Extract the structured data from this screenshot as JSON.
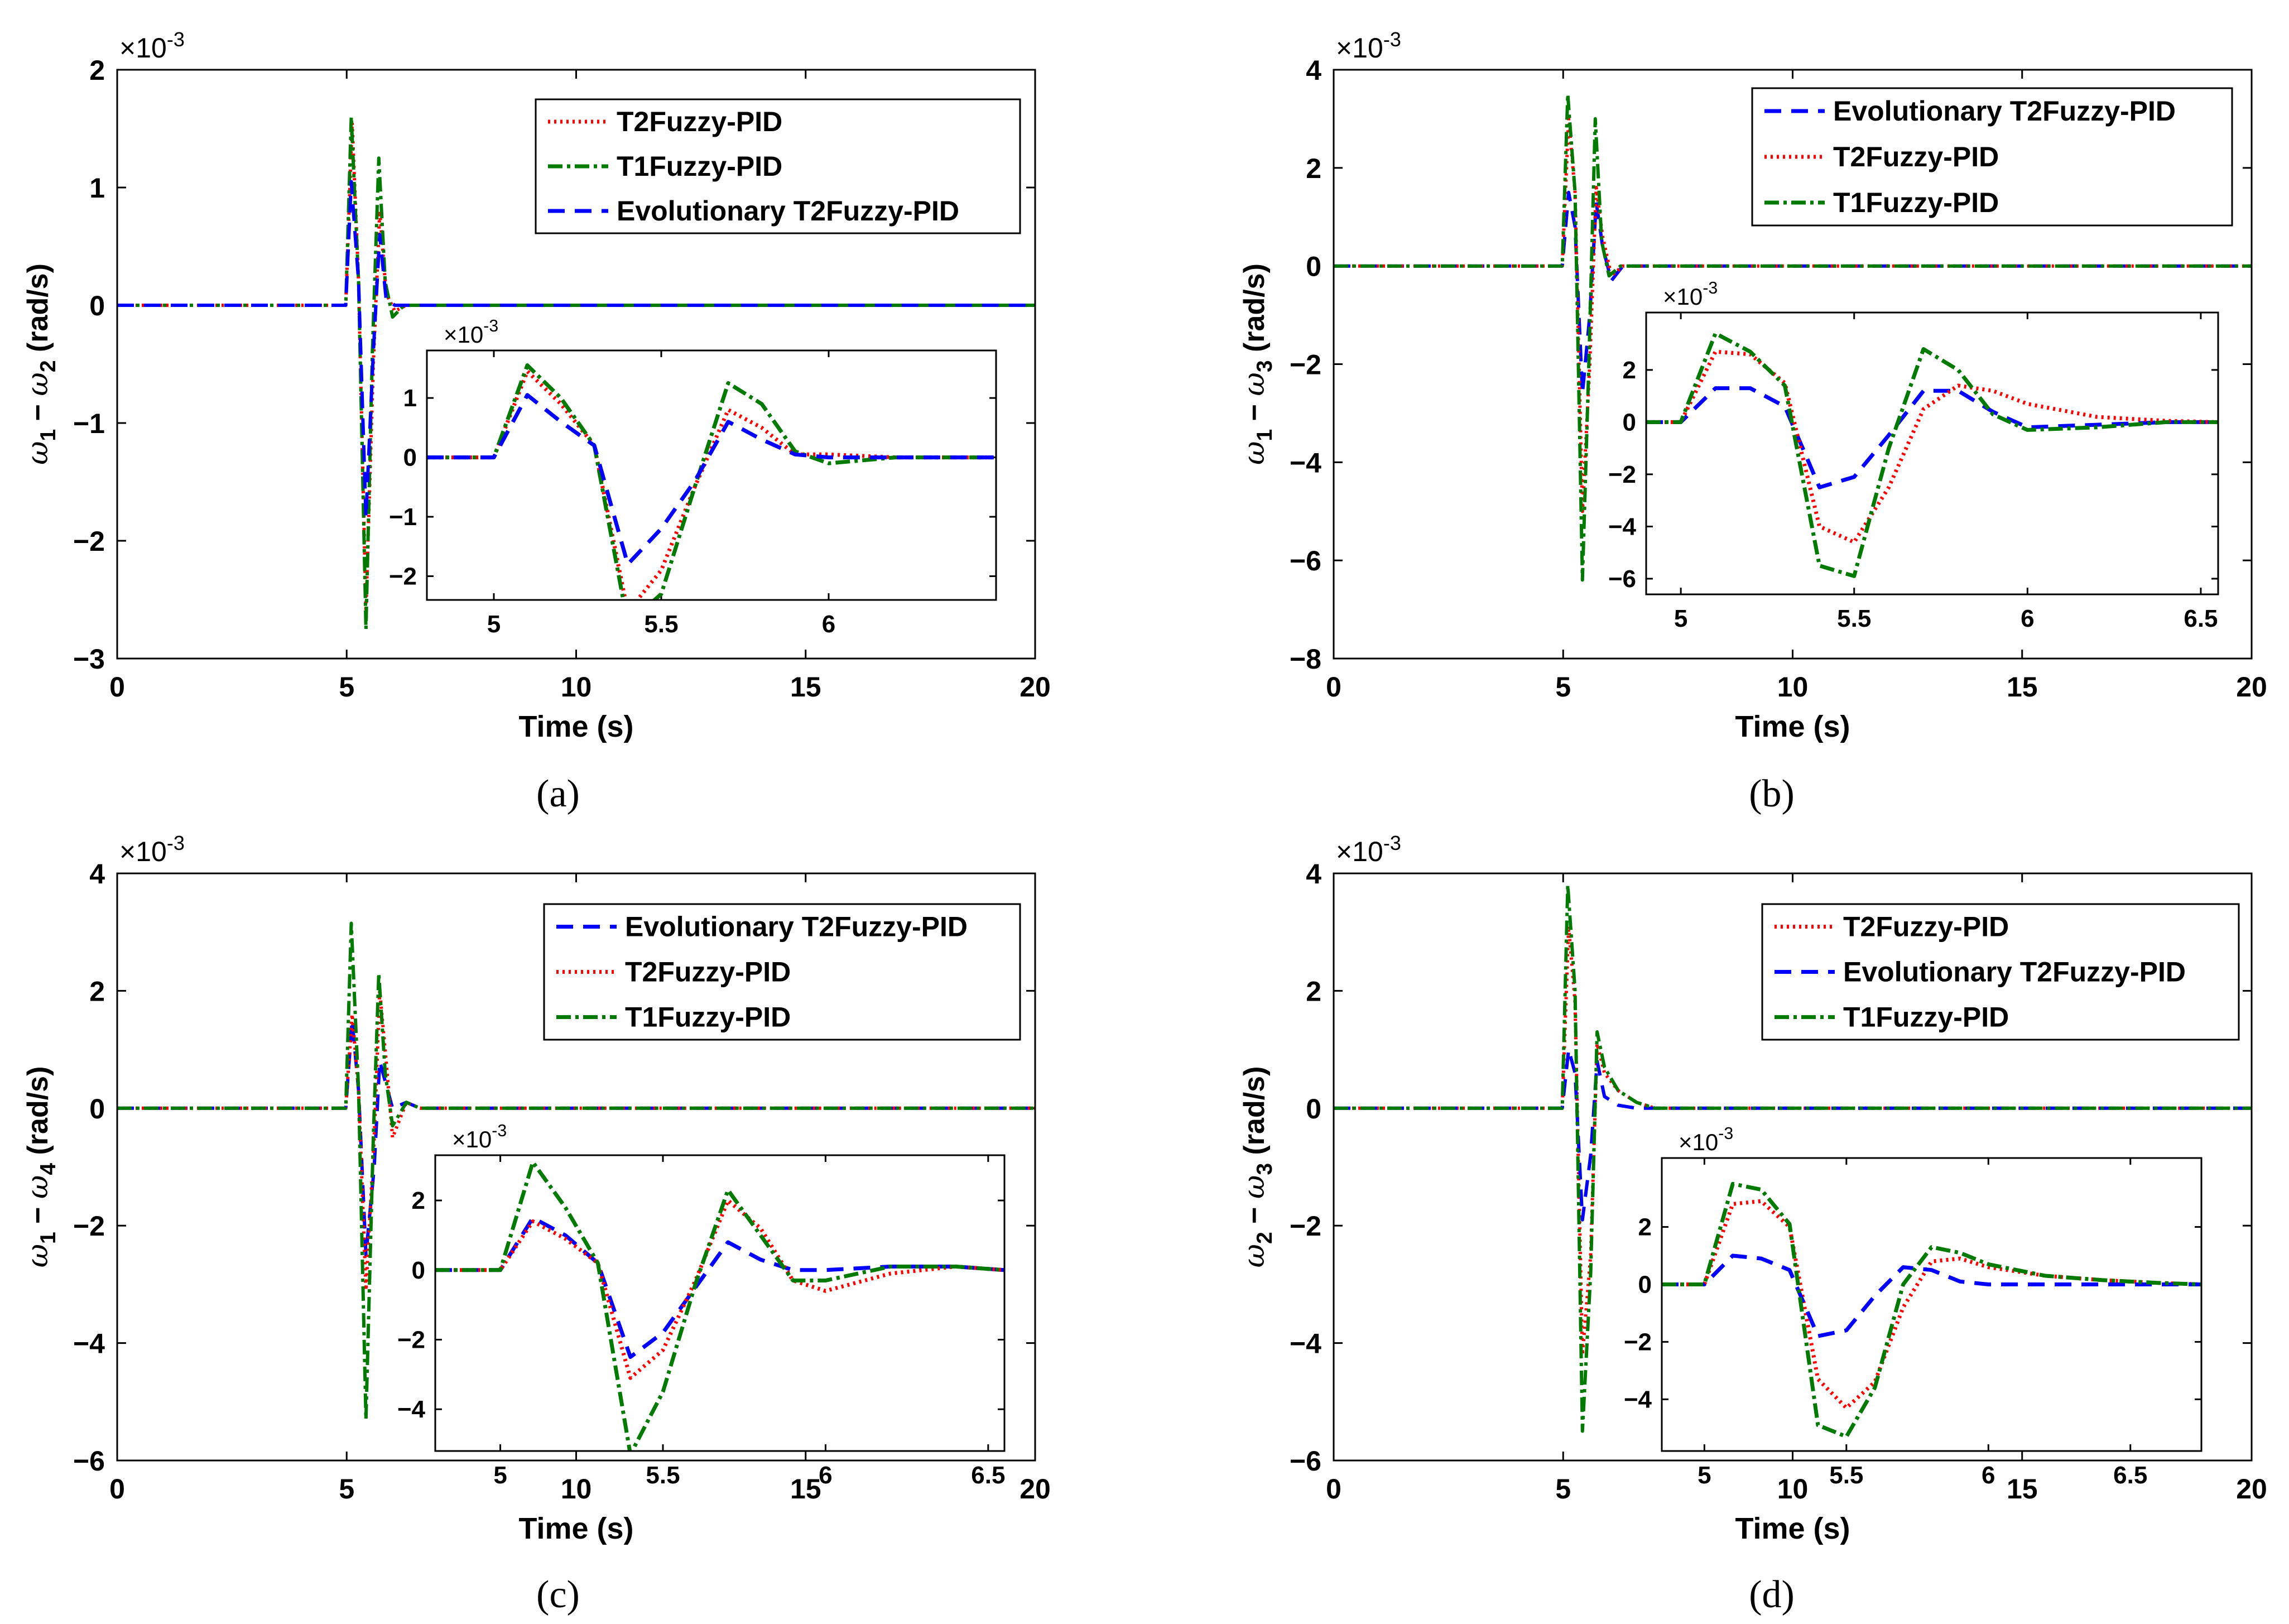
{
  "styles": {
    "T2Fuzzy-PID": {
      "color": "#ff0000",
      "dash": "4 7"
    },
    "T1Fuzzy-PID": {
      "color": "#007a00",
      "dash": "26 8 6 8"
    },
    "Evolutionary T2Fuzzy-PID": {
      "color": "#0000ff",
      "dash": "30 18"
    }
  },
  "chart_data": [
    {
      "id": "a",
      "type": "line",
      "caption": "(a)",
      "xlabel": "Time (s)",
      "ylabel_parts": [
        "ω",
        "1",
        " − ",
        "ω",
        "2",
        " (rad/s)"
      ],
      "sci": "×10-3",
      "xlim": [
        0,
        20
      ],
      "ylim": [
        -3,
        2
      ],
      "xticks": [
        0,
        5,
        10,
        15,
        20
      ],
      "yticks": [
        -3,
        -2,
        -1,
        0,
        1,
        2
      ],
      "legend_order": [
        "T2Fuzzy-PID",
        "T1Fuzzy-PID",
        "Evolutionary T2Fuzzy-PID"
      ],
      "series": [
        {
          "name": "T2Fuzzy-PID",
          "x": [
            0,
            4.98,
            5.12,
            5.26,
            5.42,
            5.58,
            5.72,
            5.86,
            6.05,
            6.3,
            20
          ],
          "y": [
            0,
            0,
            1.55,
            0.2,
            -2.6,
            -0.5,
            0.8,
            0.1,
            -0.05,
            0,
            0
          ]
        },
        {
          "name": "T1Fuzzy-PID",
          "x": [
            0,
            4.98,
            5.1,
            5.26,
            5.42,
            5.56,
            5.7,
            5.84,
            6.0,
            6.25,
            20
          ],
          "y": [
            0,
            0,
            1.6,
            0.2,
            -2.75,
            -0.4,
            1.25,
            0.2,
            -0.1,
            0,
            0
          ]
        },
        {
          "name": "Evolutionary T2Fuzzy-PID",
          "x": [
            0,
            4.98,
            5.1,
            5.26,
            5.42,
            5.58,
            5.72,
            5.86,
            6.05,
            20
          ],
          "y": [
            0,
            0,
            1.05,
            0.2,
            -1.8,
            -0.4,
            0.6,
            0.05,
            0,
            0
          ]
        }
      ],
      "inset": {
        "xlim": [
          4.8,
          6.5
        ],
        "ylim": [
          -2.4,
          1.8
        ],
        "xticks": [
          5,
          5.5,
          6
        ],
        "yticks": [
          -2,
          -1,
          0,
          1
        ],
        "sci": "×10-3",
        "series": [
          {
            "name": "T2Fuzzy-PID",
            "x": [
              4.8,
              5.0,
              5.1,
              5.2,
              5.3,
              5.4,
              5.5,
              5.6,
              5.7,
              5.8,
              5.9,
              6.0,
              6.2,
              6.5
            ],
            "y": [
              0,
              0,
              1.45,
              0.9,
              0.2,
              -2.6,
              -1.9,
              -0.5,
              0.8,
              0.5,
              0.05,
              0.05,
              0,
              0
            ]
          },
          {
            "name": "T1Fuzzy-PID",
            "x": [
              4.8,
              5.0,
              5.1,
              5.2,
              5.3,
              5.4,
              5.5,
              5.6,
              5.7,
              5.8,
              5.9,
              6.0,
              6.2,
              6.5
            ],
            "y": [
              0,
              0,
              1.55,
              1.0,
              0.2,
              -2.8,
              -2.3,
              -0.5,
              1.25,
              0.9,
              0.1,
              -0.1,
              0,
              0
            ]
          },
          {
            "name": "Evolutionary T2Fuzzy-PID",
            "x": [
              4.8,
              5.0,
              5.1,
              5.2,
              5.3,
              5.4,
              5.5,
              5.6,
              5.7,
              5.8,
              5.9,
              6.0,
              6.2,
              6.5
            ],
            "y": [
              0,
              0,
              1.05,
              0.6,
              0.2,
              -1.8,
              -1.2,
              -0.4,
              0.6,
              0.3,
              0.05,
              0.0,
              0,
              0
            ]
          }
        ]
      }
    },
    {
      "id": "b",
      "type": "line",
      "caption": "(b)",
      "xlabel": "Time (s)",
      "ylabel_parts": [
        "ω",
        "1",
        " − ",
        "ω",
        "3",
        " (rad/s)"
      ],
      "sci": "×10-3",
      "xlim": [
        0,
        20
      ],
      "ylim": [
        -8,
        4
      ],
      "xticks": [
        0,
        5,
        10,
        15,
        20
      ],
      "yticks": [
        -8,
        -6,
        -4,
        -2,
        0,
        2,
        4
      ],
      "legend_order": [
        "Evolutionary T2Fuzzy-PID",
        "T2Fuzzy-PID",
        "T1Fuzzy-PID"
      ],
      "series": [
        {
          "name": "Evolutionary T2Fuzzy-PID",
          "x": [
            0,
            4.98,
            5.12,
            5.26,
            5.42,
            5.58,
            5.72,
            5.86,
            6.05,
            6.3,
            20
          ],
          "y": [
            0,
            0,
            1.5,
            0.8,
            -2.6,
            -1.0,
            1.3,
            0.4,
            -0.3,
            0,
            0
          ]
        },
        {
          "name": "T2Fuzzy-PID",
          "x": [
            0,
            4.98,
            5.12,
            5.26,
            5.42,
            5.58,
            5.72,
            5.86,
            6.05,
            6.3,
            20
          ],
          "y": [
            0,
            0,
            3.0,
            1.5,
            -5.0,
            -2.0,
            1.6,
            0.6,
            -0.2,
            0,
            0
          ]
        },
        {
          "name": "T1Fuzzy-PID",
          "x": [
            0,
            4.98,
            5.1,
            5.26,
            5.42,
            5.56,
            5.7,
            5.84,
            6.0,
            6.25,
            20
          ],
          "y": [
            0,
            0,
            3.5,
            1.5,
            -6.4,
            -2.0,
            3.0,
            0.5,
            -0.2,
            0,
            0
          ]
        }
      ],
      "inset": {
        "xlim": [
          4.9,
          6.55
        ],
        "ylim": [
          -6.6,
          4.2
        ],
        "xticks": [
          5,
          5.5,
          6,
          6.5
        ],
        "yticks": [
          -6,
          -4,
          -2,
          0,
          2
        ],
        "sci": "×10-3",
        "series": [
          {
            "name": "Evolutionary T2Fuzzy-PID",
            "x": [
              4.9,
              5.0,
              5.1,
              5.2,
              5.3,
              5.4,
              5.5,
              5.6,
              5.7,
              5.8,
              5.9,
              6.0,
              6.2,
              6.4,
              6.55
            ],
            "y": [
              0,
              0,
              1.3,
              1.3,
              0.6,
              -2.5,
              -2.1,
              -0.5,
              1.2,
              1.2,
              0.4,
              -0.2,
              -0.1,
              0,
              0
            ]
          },
          {
            "name": "T2Fuzzy-PID",
            "x": [
              4.9,
              5.0,
              5.1,
              5.2,
              5.3,
              5.4,
              5.5,
              5.6,
              5.7,
              5.8,
              5.9,
              6.0,
              6.2,
              6.4,
              6.55
            ],
            "y": [
              0,
              0,
              2.7,
              2.6,
              1.5,
              -4.0,
              -4.6,
              -2.5,
              0.5,
              1.4,
              1.2,
              0.7,
              0.2,
              0.05,
              0
            ]
          },
          {
            "name": "T1Fuzzy-PID",
            "x": [
              4.9,
              5.0,
              5.1,
              5.2,
              5.3,
              5.4,
              5.5,
              5.6,
              5.7,
              5.8,
              5.9,
              6.0,
              6.2,
              6.4,
              6.55
            ],
            "y": [
              0,
              0,
              3.4,
              2.7,
              1.4,
              -5.5,
              -5.9,
              -1.0,
              2.8,
              2.0,
              0.3,
              -0.3,
              -0.2,
              0,
              0
            ]
          }
        ]
      }
    },
    {
      "id": "c",
      "type": "line",
      "caption": "(c)",
      "xlabel": "Time (s)",
      "ylabel_parts": [
        "ω",
        "1",
        " − ",
        "ω",
        "4",
        " (rad/s)"
      ],
      "sci": "×10-3",
      "xlim": [
        0,
        20
      ],
      "ylim": [
        -6,
        4
      ],
      "xticks": [
        0,
        5,
        10,
        15,
        20
      ],
      "yticks": [
        -6,
        -4,
        -2,
        0,
        2,
        4
      ],
      "legend_order": [
        "Evolutionary T2Fuzzy-PID",
        "T2Fuzzy-PID",
        "T1Fuzzy-PID"
      ],
      "series": [
        {
          "name": "Evolutionary T2Fuzzy-PID",
          "x": [
            0,
            4.98,
            5.12,
            5.26,
            5.42,
            5.6,
            5.72,
            5.86,
            6.0,
            6.3,
            6.6,
            20
          ],
          "y": [
            0,
            0,
            1.5,
            0.3,
            -2.5,
            -1.0,
            0.8,
            0.4,
            0,
            0.1,
            0,
            0
          ]
        },
        {
          "name": "T2Fuzzy-PID",
          "x": [
            0,
            4.98,
            5.12,
            5.26,
            5.42,
            5.6,
            5.72,
            5.86,
            6.0,
            6.3,
            6.6,
            20
          ],
          "y": [
            0,
            0,
            1.6,
            0.3,
            -3.1,
            -0.5,
            2.0,
            0.8,
            -0.5,
            0.1,
            0,
            0
          ]
        },
        {
          "name": "T1Fuzzy-PID",
          "x": [
            0,
            4.98,
            5.1,
            5.26,
            5.42,
            5.58,
            5.7,
            5.84,
            6.0,
            6.3,
            6.6,
            20
          ],
          "y": [
            0,
            0,
            3.15,
            0.3,
            -5.3,
            -0.5,
            2.3,
            0.6,
            -0.3,
            0.1,
            0,
            0
          ]
        }
      ],
      "inset": {
        "xlim": [
          4.8,
          6.55
        ],
        "ylim": [
          -5.2,
          3.3
        ],
        "xticks": [
          5,
          5.5,
          6,
          6.5
        ],
        "yticks": [
          -4,
          -2,
          0,
          2
        ],
        "sci": "×10-3",
        "series": [
          {
            "name": "Evolutionary T2Fuzzy-PID",
            "x": [
              4.8,
              5.0,
              5.1,
              5.2,
              5.3,
              5.4,
              5.5,
              5.6,
              5.7,
              5.8,
              5.9,
              6.0,
              6.2,
              6.4,
              6.55
            ],
            "y": [
              0,
              0,
              1.5,
              1.0,
              0.2,
              -2.5,
              -1.8,
              -0.5,
              0.8,
              0.3,
              0.0,
              0.0,
              0.1,
              0.1,
              0
            ]
          },
          {
            "name": "T2Fuzzy-PID",
            "x": [
              4.8,
              5.0,
              5.1,
              5.2,
              5.3,
              5.4,
              5.5,
              5.6,
              5.7,
              5.8,
              5.9,
              6.0,
              6.2,
              6.4,
              6.55
            ],
            "y": [
              0,
              0,
              1.4,
              0.9,
              0.2,
              -3.1,
              -2.3,
              -0.3,
              2.0,
              1.2,
              -0.3,
              -0.6,
              -0.1,
              0.1,
              0
            ]
          },
          {
            "name": "T1Fuzzy-PID",
            "x": [
              4.8,
              5.0,
              5.1,
              5.2,
              5.3,
              5.4,
              5.5,
              5.6,
              5.7,
              5.8,
              5.9,
              6.0,
              6.2,
              6.4,
              6.55
            ],
            "y": [
              0,
              0,
              3.1,
              1.8,
              0.2,
              -5.3,
              -3.5,
              -0.4,
              2.3,
              1.0,
              -0.3,
              -0.3,
              0.1,
              0.1,
              0
            ]
          }
        ]
      }
    },
    {
      "id": "d",
      "type": "line",
      "caption": "(d)",
      "xlabel": "Time (s)",
      "ylabel_parts": [
        "ω",
        "2",
        " − ",
        "ω",
        "3",
        " (rad/s)"
      ],
      "sci": "×10-3",
      "xlim": [
        0,
        20
      ],
      "ylim": [
        -6,
        4
      ],
      "xticks": [
        0,
        5,
        10,
        15,
        20
      ],
      "yticks": [
        -6,
        -4,
        -2,
        0,
        2,
        4
      ],
      "legend_order": [
        "T2Fuzzy-PID",
        "Evolutionary T2Fuzzy-PID",
        "T1Fuzzy-PID"
      ],
      "series": [
        {
          "name": "T2Fuzzy-PID",
          "x": [
            0,
            4.98,
            5.12,
            5.26,
            5.42,
            5.6,
            5.74,
            5.9,
            6.2,
            6.6,
            7.0,
            20
          ],
          "y": [
            0,
            0,
            3.1,
            1.8,
            -4.2,
            -2.5,
            1.1,
            0.6,
            0.3,
            0.1,
            0,
            0
          ]
        },
        {
          "name": "Evolutionary T2Fuzzy-PID",
          "x": [
            0,
            4.98,
            5.12,
            5.26,
            5.42,
            5.6,
            5.74,
            5.9,
            6.2,
            6.6,
            20
          ],
          "y": [
            0,
            0,
            1.0,
            0.6,
            -1.9,
            -0.8,
            0.8,
            0.2,
            0.05,
            0,
            0
          ]
        },
        {
          "name": "T1Fuzzy-PID",
          "x": [
            0,
            4.98,
            5.1,
            5.26,
            5.42,
            5.6,
            5.74,
            5.9,
            6.2,
            6.6,
            7.0,
            20
          ],
          "y": [
            0,
            0,
            3.8,
            2.0,
            -5.5,
            -2.8,
            1.3,
            0.7,
            0.3,
            0.1,
            0,
            0
          ]
        }
      ],
      "inset": {
        "xlim": [
          4.85,
          6.75
        ],
        "ylim": [
          -5.8,
          4.4
        ],
        "xticks": [
          5,
          5.5,
          6,
          6.5
        ],
        "yticks": [
          -4,
          -2,
          0,
          2
        ],
        "sci": "×10-3",
        "series": [
          {
            "name": "T2Fuzzy-PID",
            "x": [
              4.85,
              5.0,
              5.1,
              5.2,
              5.3,
              5.4,
              5.5,
              5.6,
              5.7,
              5.8,
              5.9,
              6.0,
              6.2,
              6.4,
              6.6,
              6.75
            ],
            "y": [
              0,
              0,
              2.8,
              2.9,
              2.0,
              -3.3,
              -4.3,
              -3.4,
              -0.8,
              0.8,
              0.9,
              0.6,
              0.3,
              0.15,
              0.05,
              0
            ]
          },
          {
            "name": "Evolutionary T2Fuzzy-PID",
            "x": [
              4.85,
              5.0,
              5.1,
              5.2,
              5.3,
              5.4,
              5.5,
              5.6,
              5.7,
              5.8,
              5.9,
              6.0,
              6.2,
              6.4,
              6.6,
              6.75
            ],
            "y": [
              0,
              0,
              1.0,
              0.9,
              0.5,
              -1.8,
              -1.6,
              -0.4,
              0.6,
              0.5,
              0.1,
              0.0,
              0.0,
              0.0,
              0.0,
              0
            ]
          },
          {
            "name": "T1Fuzzy-PID",
            "x": [
              4.85,
              5.0,
              5.1,
              5.2,
              5.3,
              5.4,
              5.5,
              5.6,
              5.7,
              5.8,
              5.9,
              6.0,
              6.2,
              6.4,
              6.6,
              6.75
            ],
            "y": [
              0,
              0,
              3.5,
              3.3,
              2.1,
              -4.9,
              -5.3,
              -3.6,
              0.0,
              1.3,
              1.1,
              0.7,
              0.3,
              0.15,
              0.05,
              0
            ]
          }
        ]
      }
    }
  ]
}
